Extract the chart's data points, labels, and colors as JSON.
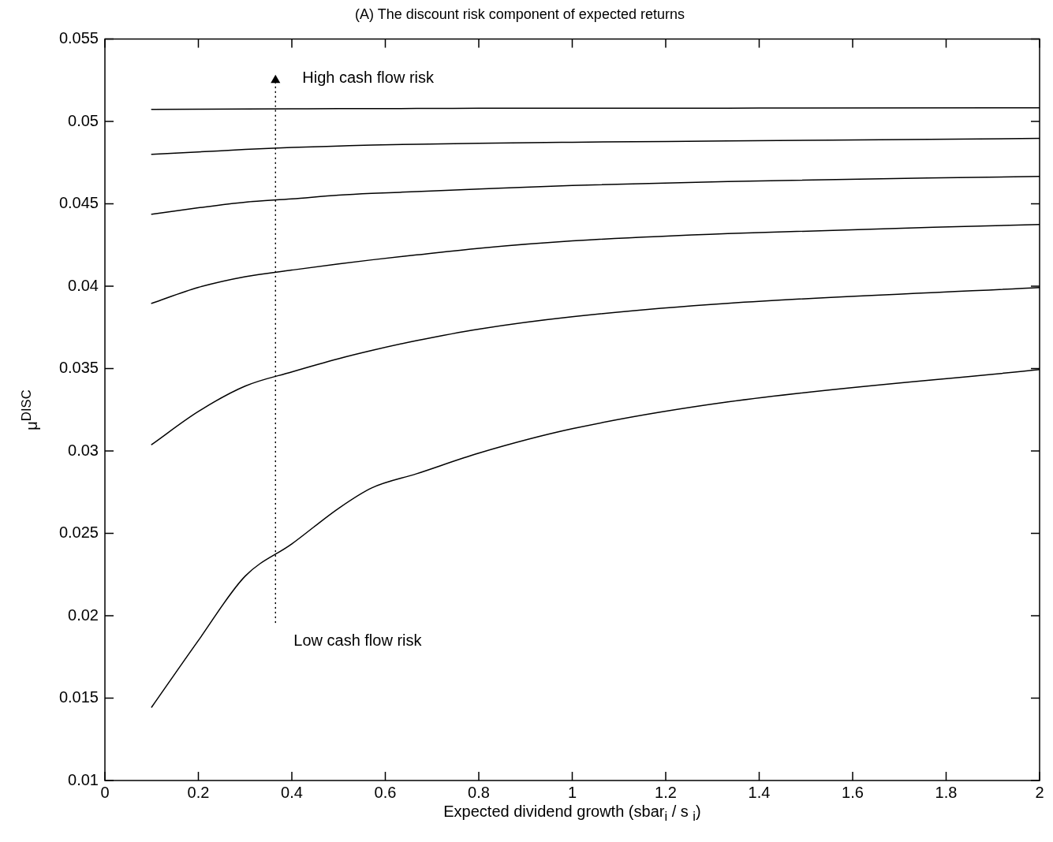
{
  "chart_data": {
    "type": "line",
    "title": "(A) The discount risk component of expected returns",
    "xlabel": "Expected dividend growth (sbar$_{i}$ / s $_{i}$)",
    "ylabel": "μ$^{DISC}$",
    "x": [
      0.1,
      0.2,
      0.3,
      0.4,
      0.5,
      0.571,
      0.667,
      0.8,
      1,
      1.333,
      2
    ],
    "series": [
      {
        "color": "#000000",
        "values": [
          0.01445,
          0.0185,
          0.0224,
          0.02436,
          0.02652,
          0.02776,
          0.02862,
          0.02987,
          0.03135,
          0.03298,
          0.03494
        ]
      },
      {
        "color": "#000000",
        "values": [
          0.03039,
          0.0324,
          0.03394,
          0.0348,
          0.0356,
          0.0361,
          0.0367,
          0.0374,
          0.03815,
          0.03896,
          0.03992
        ]
      },
      {
        "color": "#000000",
        "values": [
          0.03896,
          0.03993,
          0.04058,
          0.04098,
          0.04136,
          0.0416,
          0.0419,
          0.0423,
          0.04275,
          0.0432,
          0.04375
        ]
      },
      {
        "color": "#000000",
        "values": [
          0.04437,
          0.04476,
          0.0451,
          0.0453,
          0.04553,
          0.04564,
          0.04574,
          0.0459,
          0.04612,
          0.04636,
          0.04667
        ]
      },
      {
        "color": "#000000",
        "values": [
          0.04801,
          0.04815,
          0.0483,
          0.04842,
          0.04851,
          0.04857,
          0.04862,
          0.04868,
          0.04874,
          0.04882,
          0.04897
        ]
      },
      {
        "color": "#000000",
        "values": [
          0.05074,
          0.05075,
          0.05076,
          0.05077,
          0.05078,
          0.05078,
          0.05079,
          0.0508,
          0.0508,
          0.05081,
          0.05083
        ]
      },
      {
        "color": "#000000",
        "x": [
          0.365,
          0.365
        ],
        "values": [
          0.0196,
          0.0525
        ],
        "line_style": "dotted",
        "marker": "triangle"
      }
    ],
    "xlim": [
      0,
      2
    ],
    "xticks": [
      0,
      0.2,
      0.4,
      0.6,
      0.8,
      1,
      1.2,
      1.4,
      1.6,
      1.8,
      2
    ],
    "ylim": [
      0.01,
      0.055
    ],
    "yticks": [
      0.01,
      0.015,
      0.02,
      0.025,
      0.03,
      0.035,
      0.04,
      0.045,
      0.05,
      0.055
    ],
    "annotations": [
      "High cash flow risk",
      "Low cash flow risk"
    ],
    "grid": false,
    "legend": false,
    "marker": "none",
    "line_style": "solid"
  }
}
